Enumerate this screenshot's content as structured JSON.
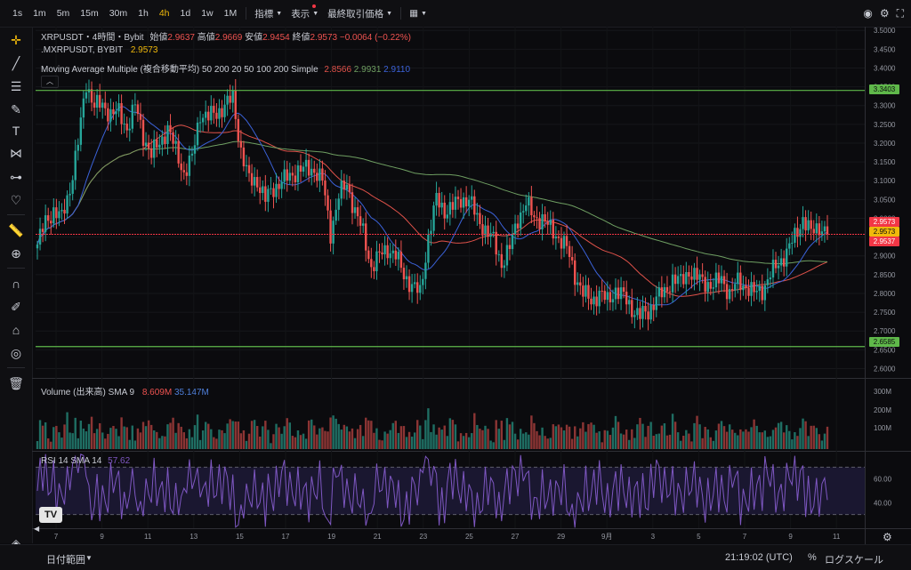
{
  "toolbar": {
    "timeframes": [
      "1s",
      "1m",
      "5m",
      "15m",
      "30m",
      "1h",
      "4h",
      "1d",
      "1w",
      "1M"
    ],
    "active_timeframe": "4h",
    "indicators_label": "指標",
    "display_label": "表示",
    "last_price_label": "最終取引価格"
  },
  "sidebar": {
    "tools": [
      "crosshair-icon",
      "trendline-icon",
      "horizontal-lines-icon",
      "brush-icon",
      "text-icon",
      "pattern-icon",
      "forecast-icon",
      "heart-icon",
      "ruler-icon",
      "zoom-in-icon",
      "magnet-icon",
      "pencil-lock-icon",
      "lock-icon",
      "eye-icon",
      "trash-icon",
      "layers-icon"
    ]
  },
  "legend": {
    "symbol": "XRPUSDT・4時間・Bybit",
    "open_label": "始値",
    "open": "2.9637",
    "high_label": "高値",
    "high": "2.9669",
    "low_label": "安値",
    "low": "2.9454",
    "close_label": "終値",
    "close": "2.9573",
    "change": "−0.0064 (−0.22%)",
    "mark_symbol": ".MXRPUSDT, BYBIT",
    "mark_value": "2.9573",
    "ma_label": "Moving Average Multiple (複合移動平均) 50 200 20 50 100 200 Simple",
    "ma_values": [
      "2.8566",
      "2.9931",
      "2.9110"
    ],
    "volume_label": "Volume (出来高) SMA 9",
    "volume_values": [
      "8.609M",
      "35.147M"
    ],
    "rsi_label": "RSI 14 SMA 14",
    "rsi_value": "57.62"
  },
  "price_labels": {
    "level_high": "3.3403",
    "price_top": "2.9573",
    "price_mid": "2.9573",
    "price_low": "2.9537",
    "level_low": "2.6585"
  },
  "colors": {
    "up": "#26a69a",
    "down": "#ef5350",
    "ma_red": "#e0524a",
    "ma_green": "#6f9f62",
    "ma_blue": "#3b62d9",
    "rsi": "#7e57c2",
    "level_line": "#5fb84a",
    "last_price": "#f23645",
    "accent": "#f0b90b"
  },
  "bottom": {
    "date_range": "日付範囲",
    "time": "21:19:02 (UTC)",
    "percent": "%",
    "log_scale": "ログスケール"
  },
  "chart_data": {
    "type": "candlestick",
    "symbol": "XRPUSDT",
    "interval": "4h",
    "price_axis": {
      "ticks": [
        "3.5000",
        "3.4500",
        "3.4000",
        "3.3500",
        "3.3000",
        "3.2500",
        "3.2000",
        "3.1500",
        "3.1000",
        "3.0500",
        "3.0000",
        "2.9500",
        "2.9000",
        "2.8500",
        "2.8000",
        "2.7500",
        "2.7000",
        "2.6500",
        "2.6000"
      ],
      "ylim": [
        2.575,
        3.51
      ]
    },
    "x_ticks": [
      "7",
      "9",
      "11",
      "13",
      "15",
      "17",
      "19",
      "21",
      "23",
      "25",
      "27",
      "29",
      "9月",
      "3",
      "5",
      "7",
      "9",
      "11"
    ],
    "volume_axis": {
      "ticks": [
        "300M",
        "200M",
        "100M"
      ]
    },
    "rsi_axis": {
      "ticks": [
        "60.00",
        "40.00"
      ],
      "bands": [
        30,
        70
      ]
    },
    "horizontal_levels": [
      3.3403,
      2.6585
    ],
    "last_price": 2.9573,
    "close_anchors": [
      [
        0,
        2.93
      ],
      [
        3,
        2.99
      ],
      [
        6,
        3.02
      ],
      [
        9,
        3.0
      ],
      [
        12,
        3.08
      ],
      [
        15,
        3.2
      ],
      [
        18,
        3.36
      ],
      [
        21,
        3.3
      ],
      [
        24,
        3.3
      ],
      [
        27,
        3.28
      ],
      [
        30,
        3.28
      ],
      [
        33,
        3.24
      ],
      [
        36,
        3.3
      ],
      [
        39,
        3.22
      ],
      [
        42,
        3.17
      ],
      [
        45,
        3.2
      ],
      [
        48,
        3.24
      ],
      [
        51,
        3.18
      ],
      [
        54,
        3.12
      ],
      [
        57,
        3.16
      ],
      [
        60,
        3.28
      ],
      [
        63,
        3.27
      ],
      [
        66,
        3.28
      ],
      [
        69,
        3.3
      ],
      [
        72,
        3.32
      ],
      [
        75,
        3.18
      ],
      [
        78,
        3.1
      ],
      [
        81,
        3.1
      ],
      [
        84,
        3.05
      ],
      [
        87,
        3.08
      ],
      [
        90,
        3.1
      ],
      [
        93,
        3.11
      ],
      [
        96,
        3.13
      ],
      [
        99,
        3.13
      ],
      [
        102,
        3.13
      ],
      [
        105,
        3.1
      ],
      [
        108,
        2.96
      ],
      [
        111,
        3.06
      ],
      [
        114,
        3.09
      ],
      [
        117,
        3.02
      ],
      [
        120,
        2.96
      ],
      [
        123,
        2.87
      ],
      [
        126,
        2.9
      ],
      [
        129,
        2.92
      ],
      [
        132,
        2.9
      ],
      [
        135,
        2.85
      ],
      [
        138,
        2.82
      ],
      [
        141,
        2.8
      ],
      [
        144,
        2.95
      ],
      [
        147,
        3.05
      ],
      [
        150,
        3.02
      ],
      [
        153,
        3.03
      ],
      [
        156,
        3.05
      ],
      [
        159,
        3.05
      ],
      [
        162,
        3.0
      ],
      [
        165,
        2.97
      ],
      [
        168,
        2.94
      ],
      [
        171,
        2.88
      ],
      [
        174,
        2.92
      ],
      [
        177,
        3.0
      ],
      [
        180,
        3.04
      ],
      [
        183,
        3.0
      ],
      [
        186,
        3.0
      ],
      [
        189,
        2.97
      ],
      [
        192,
        2.95
      ],
      [
        195,
        2.92
      ],
      [
        198,
        2.85
      ],
      [
        201,
        2.8
      ],
      [
        204,
        2.78
      ],
      [
        207,
        2.8
      ],
      [
        210,
        2.78
      ],
      [
        213,
        2.81
      ],
      [
        216,
        2.79
      ],
      [
        219,
        2.76
      ],
      [
        222,
        2.74
      ],
      [
        225,
        2.75
      ],
      [
        228,
        2.79
      ],
      [
        231,
        2.8
      ],
      [
        234,
        2.84
      ],
      [
        237,
        2.83
      ],
      [
        240,
        2.86
      ],
      [
        243,
        2.84
      ],
      [
        246,
        2.83
      ],
      [
        249,
        2.82
      ],
      [
        252,
        2.84
      ],
      [
        255,
        2.8
      ],
      [
        258,
        2.83
      ],
      [
        261,
        2.82
      ],
      [
        264,
        2.8
      ],
      [
        267,
        2.81
      ],
      [
        270,
        2.85
      ],
      [
        273,
        2.88
      ],
      [
        276,
        2.91
      ],
      [
        279,
        2.95
      ],
      [
        282,
        3.0
      ],
      [
        285,
        2.96
      ],
      [
        288,
        2.98
      ],
      [
        291,
        2.96
      ]
    ],
    "moving_averages": [
      {
        "name": "MA 50",
        "color": "#e0524a",
        "last": 2.8566
      },
      {
        "name": "MA 200",
        "color": "#6f9f62",
        "last": 2.9931
      },
      {
        "name": "MA 20",
        "color": "#3b62d9",
        "last": 2.911
      }
    ]
  }
}
